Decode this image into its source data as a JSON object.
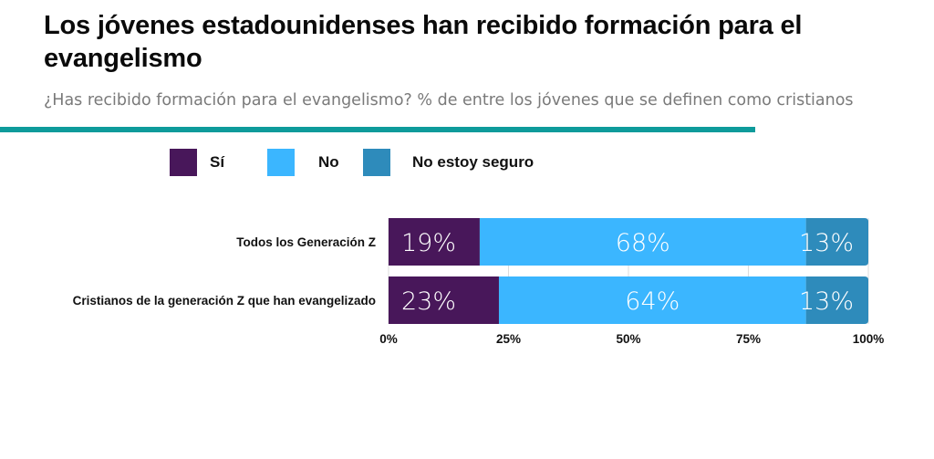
{
  "header": {
    "title": "Los jóvenes estadounidenses han recibido formación para el evangelismo",
    "subtitle": "¿Has recibido formación para el evangelismo? % de entre los jóvenes que se definen como cristianos",
    "rule_color": "#0e9b9b"
  },
  "legend": [
    {
      "label": "Sí",
      "color": "#48175a"
    },
    {
      "label": "No",
      "color": "#3bb6ff"
    },
    {
      "label": "No estoy seguro",
      "color": "#2e8bbb"
    }
  ],
  "chart_data": {
    "type": "bar",
    "orientation": "horizontal",
    "stacked": true,
    "title": "Los jóvenes estadounidenses han recibido formación para el evangelismo",
    "subtitle": "¿Has recibido formación para el evangelismo? % de entre los jóvenes que se definen como cristianos",
    "categories": [
      "Todos los Generación Z",
      "Cristianos de la generación Z que han evangelizado"
    ],
    "series": [
      {
        "name": "Sí",
        "color": "#48175a",
        "values": [
          19,
          23
        ],
        "labels": [
          "19%",
          "23%"
        ]
      },
      {
        "name": "No",
        "color": "#3bb6ff",
        "values": [
          68,
          64
        ],
        "labels": [
          "68%",
          "64%"
        ]
      },
      {
        "name": "No estoy seguro",
        "color": "#2e8bbb",
        "values": [
          13,
          13
        ],
        "labels": [
          "13%",
          "13%"
        ]
      }
    ],
    "xlim": [
      0,
      100
    ],
    "xticks": [
      0,
      25,
      50,
      75,
      100
    ],
    "xtick_labels": [
      "0%",
      "25%",
      "50%",
      "75%",
      "100%"
    ],
    "xlabel": "",
    "ylabel": "",
    "grid": true,
    "legend_position": "top"
  }
}
